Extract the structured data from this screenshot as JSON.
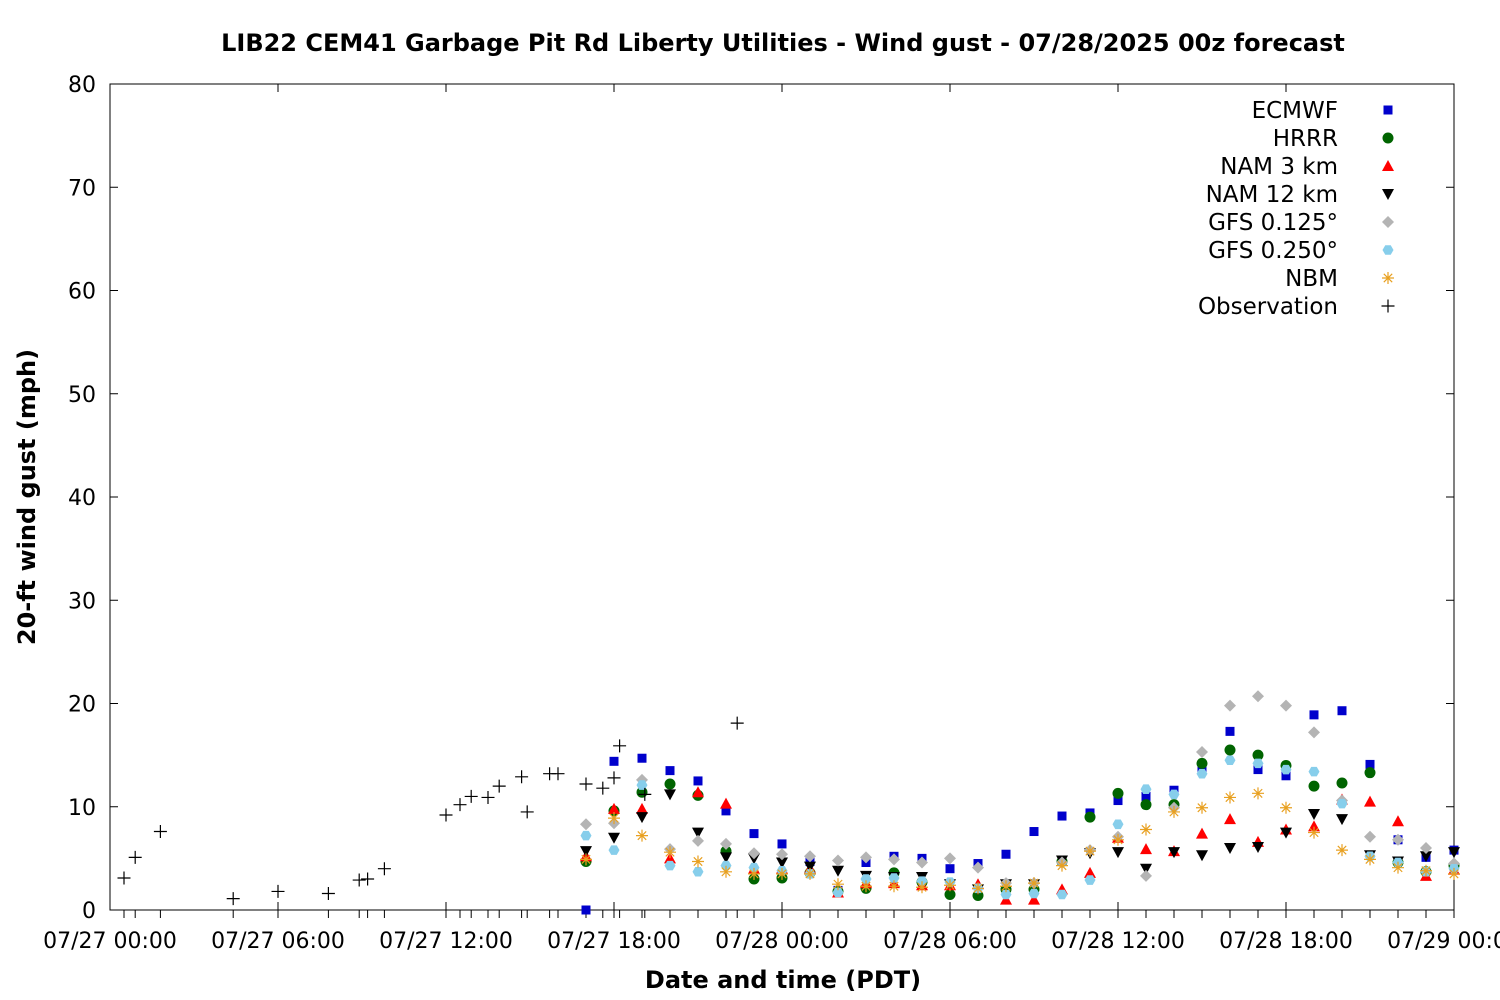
{
  "chart_data": {
    "type": "scatter",
    "title": "LIB22 CEM41 Garbage Pit Rd Liberty Utilities - Wind gust - 07/28/2025 00z forecast",
    "xlabel": "Date and time (PDT)",
    "ylabel": "20-ft wind gust (mph)",
    "x_unit": "hours since 07/27 00:00 PDT",
    "xlim": [
      0,
      48
    ],
    "ylim": [
      0,
      80
    ],
    "x_ticks": [
      {
        "x": 0,
        "label": "07/27 00:00"
      },
      {
        "x": 6,
        "label": "07/27 06:00"
      },
      {
        "x": 12,
        "label": "07/27 12:00"
      },
      {
        "x": 18,
        "label": "07/27 18:00"
      },
      {
        "x": 24,
        "label": "07/28 00:00"
      },
      {
        "x": 30,
        "label": "07/28 06:00"
      },
      {
        "x": 36,
        "label": "07/28 12:00"
      },
      {
        "x": 42,
        "label": "07/28 18:00"
      },
      {
        "x": 48,
        "label": "07/29 00:00"
      }
    ],
    "y_ticks": [
      0,
      10,
      20,
      30,
      40,
      50,
      60,
      70,
      80
    ],
    "legend_position": "top-right",
    "series": [
      {
        "name": "ECMWF",
        "marker": "square",
        "color": "#0000cc",
        "x": [
          17,
          18,
          19,
          20,
          21,
          22,
          23,
          24,
          25,
          26,
          27,
          28,
          29,
          30,
          31,
          32,
          33,
          34,
          35,
          36,
          37,
          38,
          39,
          40,
          41,
          42,
          43,
          44,
          45,
          46,
          47,
          48
        ],
        "y": [
          0,
          14.4,
          14.7,
          13.5,
          12.5,
          9.6,
          7.4,
          6.4,
          4.7,
          1.9,
          4.6,
          5.2,
          5.0,
          4.0,
          4.5,
          5.4,
          7.6,
          9.1,
          9.4,
          10.6,
          11.0,
          11.6,
          13.8,
          17.3,
          13.6,
          13.0,
          18.9,
          19.3,
          14.1,
          6.8,
          5.1,
          5.8
        ]
      },
      {
        "name": "HRRR",
        "marker": "circle",
        "color": "#006400",
        "x": [
          17,
          18,
          19,
          20,
          21,
          22,
          23,
          24,
          25,
          26,
          27,
          28,
          29,
          30,
          31,
          32,
          33,
          34,
          35,
          36,
          37,
          38,
          39,
          40,
          41,
          42,
          43,
          44,
          45,
          46,
          47,
          48
        ],
        "y": [
          4.7,
          9.6,
          11.4,
          12.2,
          11.1,
          5.7,
          3.0,
          3.1,
          3.6,
          1.8,
          2.1,
          3.6,
          2.7,
          1.5,
          1.4,
          2.0,
          2.0,
          4.7,
          9.0,
          11.3,
          10.2,
          10.2,
          14.2,
          15.5,
          15.0,
          14.0,
          12.0,
          12.3,
          13.3,
          4.6,
          3.7,
          4.3
        ]
      },
      {
        "name": "NAM 3 km",
        "marker": "triangle",
        "color": "#ff0000",
        "x": [
          17,
          18,
          19,
          20,
          21,
          22,
          23,
          24,
          25,
          26,
          27,
          28,
          29,
          30,
          31,
          32,
          33,
          34,
          35,
          36,
          37,
          38,
          39,
          40,
          41,
          42,
          43,
          44,
          45,
          46,
          47,
          48
        ],
        "y": [
          5.2,
          9.8,
          9.8,
          5.0,
          11.4,
          10.3,
          4.0,
          4.0,
          4.0,
          1.7,
          2.6,
          2.6,
          2.4,
          2.4,
          2.5,
          1.0,
          1.0,
          2.0,
          3.6,
          7.0,
          5.9,
          5.7,
          7.4,
          8.8,
          6.6,
          7.8,
          8.1,
          10.7,
          10.5,
          8.6,
          3.3,
          3.9
        ]
      },
      {
        "name": "NAM 12 km",
        "marker": "triangle-down",
        "color": "#000000",
        "x": [
          17,
          18,
          19,
          20,
          21,
          22,
          23,
          24,
          25,
          26,
          27,
          28,
          29,
          30,
          31,
          32,
          33,
          34,
          35,
          36,
          37,
          38,
          39,
          40,
          41,
          42,
          43,
          44,
          45,
          46,
          47,
          48
        ],
        "y": [
          5.7,
          7.0,
          9.0,
          11.2,
          7.5,
          5.1,
          5.0,
          4.6,
          4.2,
          3.8,
          3.3,
          3.2,
          3.2,
          2.5,
          2.0,
          2.5,
          2.5,
          4.8,
          5.5,
          5.6,
          4.0,
          5.6,
          5.3,
          6.0,
          6.1,
          7.5,
          9.3,
          8.8,
          5.3,
          4.7,
          5.2,
          5.6
        ]
      },
      {
        "name": "GFS 0.125°",
        "marker": "diamond",
        "color": "#b4b4b4",
        "x": [
          17,
          18,
          19,
          20,
          21,
          22,
          23,
          24,
          25,
          26,
          27,
          28,
          29,
          30,
          31,
          32,
          33,
          34,
          35,
          36,
          37,
          38,
          39,
          40,
          41,
          42,
          43,
          44,
          45,
          46,
          47,
          48
        ],
        "y": [
          8.3,
          8.4,
          12.6,
          5.9,
          6.7,
          6.4,
          5.5,
          5.4,
          5.2,
          4.8,
          5.1,
          4.9,
          4.6,
          5.0,
          4.1,
          2.6,
          2.6,
          4.6,
          5.8,
          7.1,
          3.3,
          9.9,
          15.3,
          19.8,
          20.7,
          19.8,
          17.2,
          10.6,
          7.1,
          6.8,
          6.0,
          4.5
        ]
      },
      {
        "name": "GFS 0.250°",
        "marker": "hexagon",
        "color": "#87ceeb",
        "x": [
          17,
          18,
          19,
          20,
          21,
          22,
          23,
          24,
          25,
          26,
          27,
          28,
          29,
          30,
          31,
          32,
          33,
          34,
          35,
          36,
          37,
          38,
          39,
          40,
          41,
          42,
          43,
          44,
          45,
          46,
          47,
          48
        ],
        "y": [
          7.2,
          5.8,
          12.1,
          4.3,
          3.7,
          4.3,
          4.1,
          3.8,
          3.5,
          1.7,
          3.0,
          3.1,
          2.8,
          2.7,
          2.1,
          1.5,
          1.6,
          1.5,
          2.9,
          8.3,
          11.7,
          11.2,
          13.2,
          14.5,
          14.2,
          13.6,
          13.4,
          10.3,
          5.2,
          4.6,
          3.7,
          4.0
        ]
      },
      {
        "name": "NBM",
        "marker": "asterisk",
        "color": "#e8a020",
        "x": [
          17,
          18,
          19,
          20,
          21,
          22,
          23,
          24,
          25,
          26,
          27,
          28,
          29,
          30,
          31,
          32,
          33,
          34,
          35,
          36,
          37,
          38,
          39,
          40,
          41,
          42,
          43,
          44,
          45,
          46,
          47,
          48
        ],
        "y": [
          4.9,
          8.9,
          7.2,
          5.6,
          4.7,
          3.7,
          3.5,
          3.5,
          3.5,
          2.5,
          2.3,
          2.3,
          2.2,
          2.4,
          2.1,
          2.3,
          2.6,
          4.3,
          5.7,
          6.8,
          7.8,
          9.5,
          9.9,
          10.9,
          11.3,
          9.9,
          7.5,
          5.8,
          4.9,
          4.1,
          3.8,
          3.5
        ]
      },
      {
        "name": "Observation",
        "marker": "plus",
        "color": "#000000",
        "x": [
          0.5,
          0.9,
          1.8,
          4.4,
          6.0,
          7.8,
          8.9,
          9.2,
          9.8,
          12.0,
          12.5,
          12.9,
          13.5,
          13.9,
          14.7,
          14.9,
          15.7,
          16.0,
          17.0,
          17.6,
          18.0,
          18.2,
          19.1,
          22.4
        ],
        "y": [
          3.1,
          5.1,
          7.6,
          1.1,
          1.8,
          1.6,
          2.9,
          3.0,
          4.0,
          9.2,
          10.2,
          11.0,
          10.9,
          12.0,
          12.9,
          9.5,
          13.2,
          13.2,
          12.2,
          11.8,
          12.8,
          15.9,
          11.2,
          18.1
        ]
      }
    ]
  }
}
